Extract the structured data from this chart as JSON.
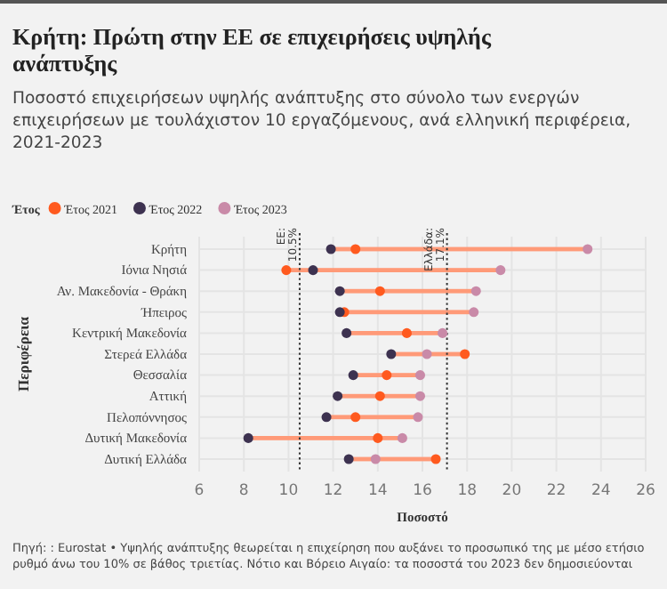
{
  "chart_data": {
    "type": "scatter",
    "orientation": "horizontal",
    "title": "Κρήτη: Πρώτη στην ΕΕ σε επιχειρήσεις υψηλής ανάπτυξης",
    "subtitle": "Ποσοστό επιχειρήσεων υψηλής ανάπτυξης στο σύνολο των ενεργών επιχειρήσεων με τουλάχιστον 10 εργαζόμενους, ανά ελληνική περιφέρεια, 2021-2023",
    "xlabel": "Ποσοστό",
    "ylabel": "Περιφέρεια",
    "legend_title": "Έτος",
    "legend": "top left",
    "grid": true,
    "marker": "circle",
    "categories": [
      "Κρήτη",
      "Ιόνια Νησιά",
      "Αν. Μακεδονία - Θράκη",
      "Ήπειρος",
      "Κεντρική Μακεδονία",
      "Στερεά Ελλάδα",
      "Θεσσαλία",
      "Αττική",
      "Πελοπόννησος",
      "Δυτική Μακεδονία",
      "Δυτική Ελλάδα"
    ],
    "series": [
      {
        "name": "Έτος 2021",
        "color": "#ff5a1f",
        "values": [
          13.0,
          9.9,
          14.1,
          12.5,
          15.3,
          17.9,
          14.4,
          14.1,
          13.0,
          14.0,
          16.6
        ]
      },
      {
        "name": "Έτος 2022",
        "color": "#3d3250",
        "values": [
          11.9,
          11.1,
          12.3,
          12.3,
          12.6,
          14.6,
          12.9,
          12.2,
          11.7,
          8.2,
          12.7
        ]
      },
      {
        "name": "Έτος 2023",
        "color": "#c98aa8",
        "values": [
          23.4,
          19.5,
          18.4,
          18.3,
          16.9,
          16.2,
          15.9,
          15.9,
          15.8,
          15.1,
          13.9
        ]
      }
    ],
    "xlim": [
      6,
      26
    ],
    "xticks": [
      6,
      8,
      10,
      12,
      14,
      16,
      18,
      20,
      22,
      24,
      26
    ],
    "ref_lines": [
      {
        "axis": "x",
        "value": 10.5,
        "label": "ΕΕ: 10.5%",
        "line_style": "dotted"
      },
      {
        "axis": "x",
        "value": 17.1,
        "label": "Ελλάδα: 17.1%",
        "line_style": "dotted"
      }
    ],
    "annotations": [
      "Πηγή: : Eurostat • Υψηλής ανάπτυξης θεωρείται η επιχείρηση που αυξάνει το προσωπικό της με μέσο ετήσιο ρυθμό άνω του 10% σε βάθος τριετίας. Νότιο και Βόρειο Αιγαίο: τα ποσοστά του 2023 δεν δημοσιεύονται"
    ]
  }
}
